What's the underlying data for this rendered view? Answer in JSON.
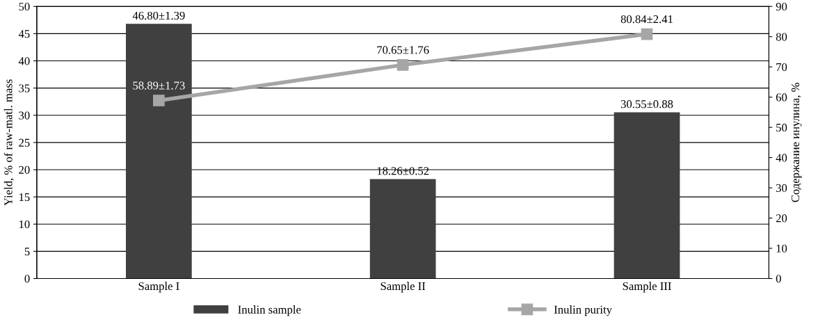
{
  "chart_data": {
    "type": "bar",
    "categories": [
      "Sample I",
      "Sample II",
      "Sample III"
    ],
    "series": [
      {
        "name": "Inulin sample",
        "color": "#404040",
        "values": [
          46.8,
          18.26,
          30.55
        ],
        "value_labels": [
          "46.80±1.39",
          "18.26±0.52",
          "30.55±0.88"
        ]
      },
      {
        "name": "Inulin purity",
        "type": "line",
        "axis": "y2",
        "color": "#a6a6a6",
        "marker": "square",
        "values": [
          58.89,
          70.65,
          80.84
        ],
        "value_labels": [
          "58.89±1.73",
          "70.65±1.76",
          "80.84±2.41"
        ]
      }
    ],
    "ylabel": "Yield, % of raw-matl. mass",
    "y2label": "Содержание инулина, %",
    "ylim": [
      0,
      50
    ],
    "yticks": [
      0,
      5,
      10,
      15,
      20,
      25,
      30,
      35,
      40,
      45,
      50
    ],
    "y2lim": [
      0,
      90
    ],
    "y2ticks": [
      0,
      10,
      20,
      30,
      40,
      50,
      60,
      70,
      80,
      90
    ],
    "grid": "y",
    "legend": "bottom"
  }
}
